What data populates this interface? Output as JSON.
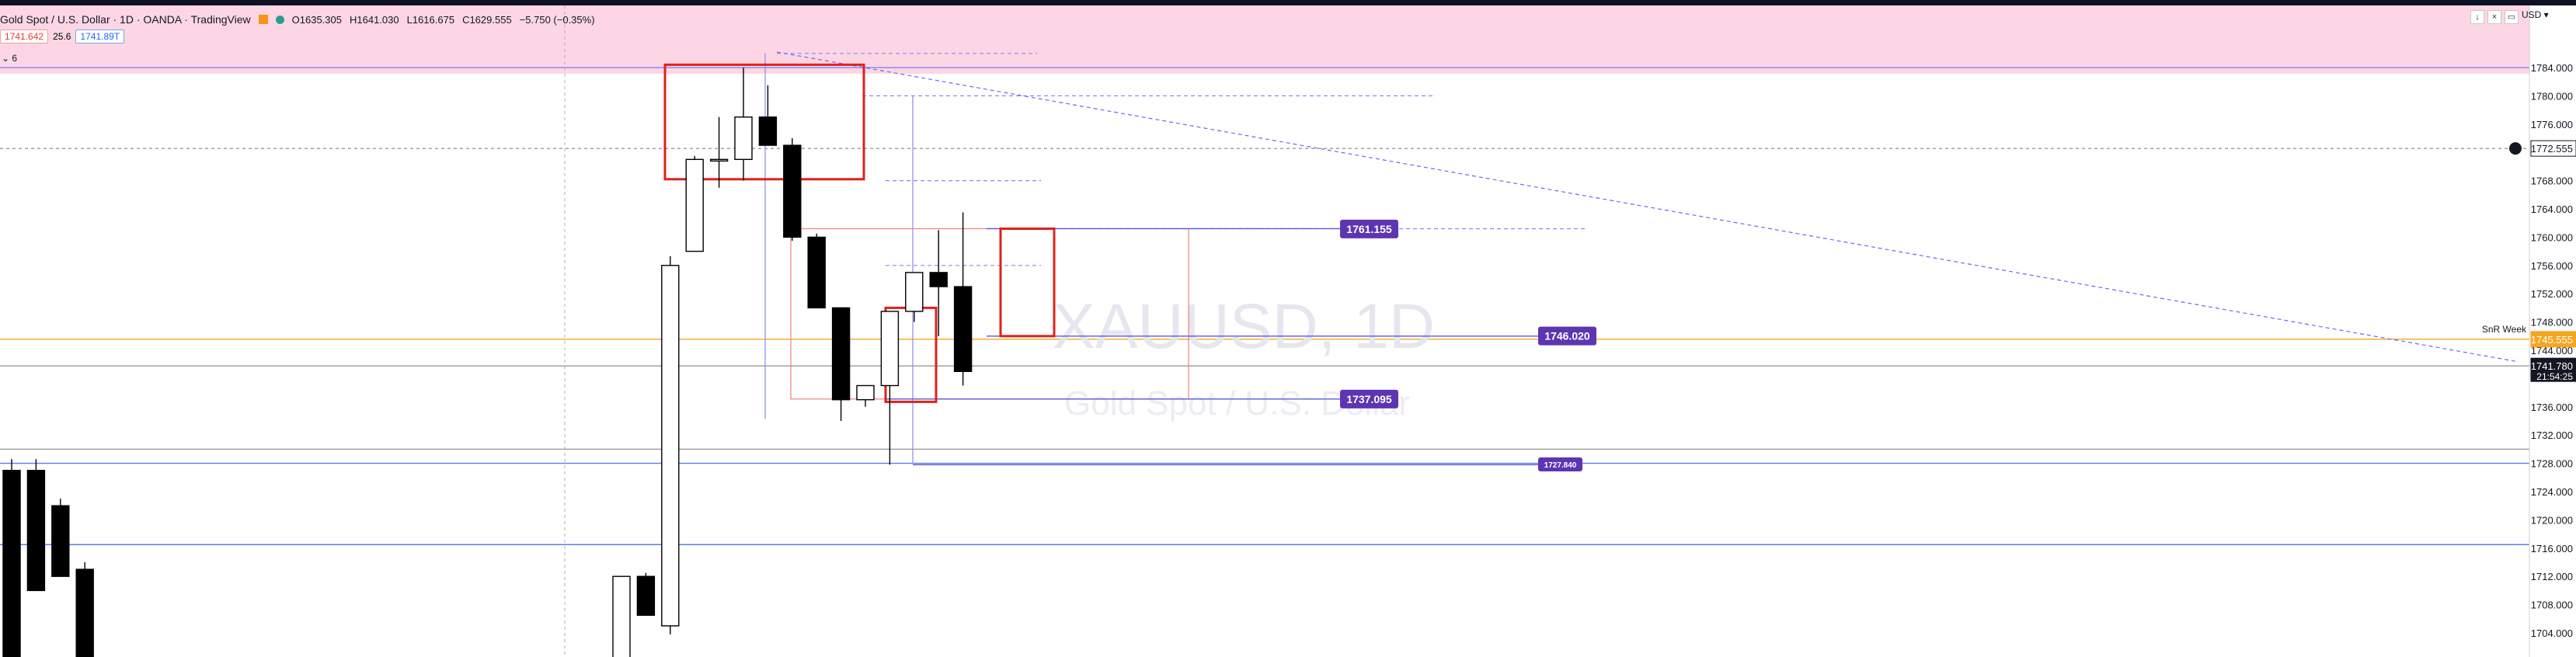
{
  "header": {
    "title": "Gold Spot / U.S. Dollar · 1D · OANDA · TradingView",
    "open": "O1635.305",
    "high": "H1641.030",
    "low": "L1616.675",
    "close": "C1629.555",
    "change": "−5.750 (−0.35%)",
    "sell_price": "1741.642",
    "spread": "25.6",
    "buy_price": "1741.89T",
    "indicators_toggle": "6",
    "currency": "USD"
  },
  "colors": {
    "pink_zone": "#fcd6e4",
    "bull_candle": "#ffffff",
    "bear_candle": "#000000",
    "purple_label": "#5e35b1",
    "orange_line": "#f5a623",
    "blue_line": "#5b7cf0",
    "red_box": "#e0201c"
  },
  "chart_data": {
    "type": "candlestick",
    "symbol": "XAUUSD",
    "timeframe": "1D",
    "watermark_symbol": "XAUUSD, 1D",
    "watermark_name": "Gold Spot / U.S. Dollar",
    "ylim": [
      1702.3,
      1788.0
    ],
    "y_ticks": [
      "1784.000",
      "1780.000",
      "1776.000",
      "1768.000",
      "1764.000",
      "1760.000",
      "1756.000",
      "1752.000",
      "1748.000",
      "1744.000",
      "1736.000",
      "1732.000",
      "1728.000",
      "1724.000",
      "1720.000",
      "1716.000",
      "1712.000",
      "1708.000",
      "1704.000"
    ],
    "candles": [
      {
        "x": 1,
        "o": 1727.0,
        "h": 1728.6,
        "l": 1700.0,
        "c": 1700.0
      },
      {
        "x": 2,
        "o": 1727.0,
        "h": 1728.6,
        "l": 1710.0,
        "c": 1710.0
      },
      {
        "x": 3,
        "o": 1722.0,
        "h": 1723.0,
        "l": 1712.0,
        "c": 1712.0
      },
      {
        "x": 4,
        "o": 1713.0,
        "h": 1714.0,
        "l": 1700.0,
        "c": 1700.0
      },
      {
        "x": 26,
        "o": 1700.0,
        "h": 1712.0,
        "l": 1700.0,
        "c": 1712.0
      },
      {
        "x": 27,
        "o": 1712.0,
        "h": 1712.5,
        "l": 1706.5,
        "c": 1706.5
      },
      {
        "x": 28,
        "o": 1705.0,
        "h": 1757.3,
        "l": 1703.8,
        "c": 1756.0
      },
      {
        "x": 29,
        "o": 1758.0,
        "h": 1771.5,
        "l": 1758.0,
        "c": 1771.0
      },
      {
        "x": 30,
        "o": 1771.0,
        "h": 1777.0,
        "l": 1767.0,
        "c": 1771.0
      },
      {
        "x": 31,
        "o": 1771.0,
        "h": 1784.0,
        "l": 1768.0,
        "c": 1777.0
      },
      {
        "x": 32,
        "o": 1777.0,
        "h": 1781.5,
        "l": 1773.0,
        "c": 1773.0
      },
      {
        "x": 33,
        "o": 1773.0,
        "h": 1774.0,
        "l": 1759.5,
        "c": 1760.0
      },
      {
        "x": 34,
        "o": 1760.0,
        "h": 1760.5,
        "l": 1750.0,
        "c": 1750.0
      },
      {
        "x": 35,
        "o": 1750.0,
        "h": 1750.0,
        "l": 1734.0,
        "c": 1737.0
      },
      {
        "x": 36,
        "o": 1737.0,
        "h": 1739.0,
        "l": 1736.0,
        "c": 1739.0
      },
      {
        "x": 37,
        "o": 1739.0,
        "h": 1749.5,
        "l": 1727.8,
        "c": 1749.5
      },
      {
        "x": 38,
        "o": 1749.5,
        "h": 1755.0,
        "l": 1748.0,
        "c": 1755.0
      },
      {
        "x": 39,
        "o": 1755.0,
        "h": 1761.0,
        "l": 1746.0,
        "c": 1753.0
      },
      {
        "x": 40,
        "o": 1753.0,
        "h": 1763.5,
        "l": 1739.0,
        "c": 1741.0
      }
    ],
    "horizontal_levels": [
      {
        "price": 1784.0,
        "style": "solid",
        "color": "#8c8cf0"
      },
      {
        "price": 1772.555,
        "style": "dotted",
        "color": "#999999",
        "label": "1772.555"
      },
      {
        "price": 1745.555,
        "style": "solid",
        "color": "#f5a623",
        "label": "1745.555",
        "note": "SnR Week"
      },
      {
        "price": 1741.78,
        "style": "solid",
        "color": "#999999",
        "label": "1741.780",
        "countdown": "21:54:25"
      },
      {
        "price": 1730.0,
        "style": "solid",
        "color": "#999999"
      },
      {
        "price": 1728.0,
        "style": "solid",
        "color": "#5b7cf0"
      },
      {
        "price": 1716.5,
        "style": "solid",
        "color": "#5b7cf0"
      }
    ],
    "price_labels": [
      "1761.155",
      "1746.020",
      "1737.095",
      "1727.840"
    ]
  }
}
